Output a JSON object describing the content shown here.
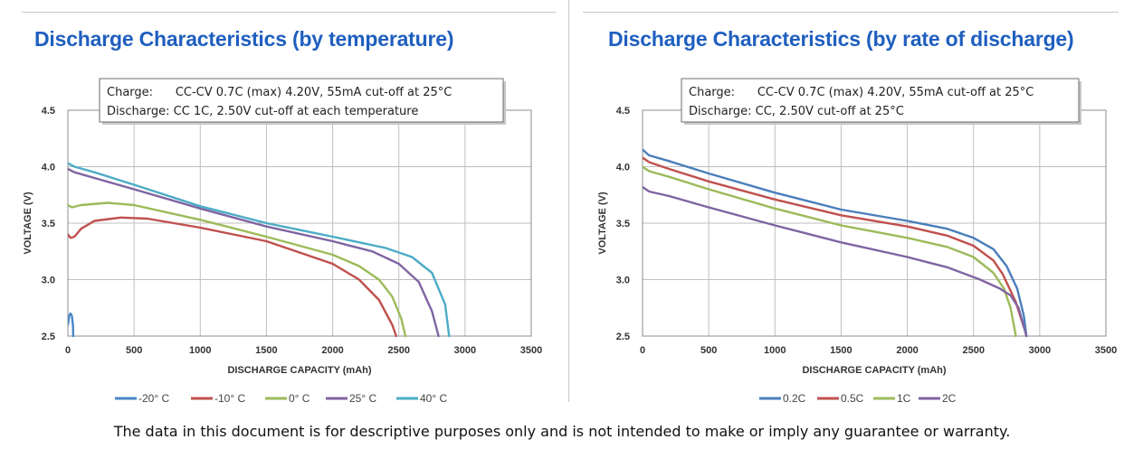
{
  "footer": "The data in this document is for descriptive purposes only and is not intended to make or imply any guarantee or warranty.",
  "chart_data": [
    {
      "type": "line",
      "title": "Discharge Characteristics (by temperature)",
      "xlabel": "DISCHARGE CAPACITY (mAh)",
      "ylabel": "VOLTAGE (V)",
      "xlim": [
        0,
        3500
      ],
      "ylim": [
        2.5,
        4.5
      ],
      "x_ticks": [
        "0",
        "500",
        "1000",
        "1500",
        "2000",
        "2500",
        "3000",
        "3500"
      ],
      "y_ticks": [
        "2.5",
        "3.0",
        "3.5",
        "4.0",
        "4.5"
      ],
      "grid": true,
      "legend_position": "bottom",
      "annotation": [
        "Charge:      CC-CV 0.7C (max) 4.20V, 55mA cut-off at 25°C",
        "Discharge: CC 1C, 2.50V cut-off at each temperature"
      ],
      "series": [
        {
          "name": "-20° C",
          "color": "#4a86c8",
          "x": [
            0,
            10,
            20,
            30,
            38,
            40
          ],
          "y": [
            2.6,
            2.68,
            2.7,
            2.68,
            2.6,
            2.5
          ]
        },
        {
          "name": "-10° C",
          "color": "#c0504d",
          "x": [
            0,
            20,
            50,
            100,
            200,
            400,
            600,
            1000,
            1500,
            2000,
            2200,
            2350,
            2450,
            2480
          ],
          "y": [
            3.4,
            3.37,
            3.38,
            3.45,
            3.52,
            3.55,
            3.54,
            3.46,
            3.34,
            3.14,
            3.0,
            2.82,
            2.6,
            2.5
          ]
        },
        {
          "name": "0° C",
          "color": "#9bbb59",
          "x": [
            0,
            30,
            100,
            300,
            500,
            1000,
            1500,
            2000,
            2200,
            2350,
            2450,
            2520,
            2550
          ],
          "y": [
            3.66,
            3.64,
            3.66,
            3.68,
            3.66,
            3.53,
            3.38,
            3.22,
            3.12,
            3.0,
            2.85,
            2.65,
            2.5
          ]
        },
        {
          "name": "25° C",
          "color": "#8064a2",
          "x": [
            0,
            50,
            200,
            500,
            1000,
            1500,
            2000,
            2300,
            2500,
            2650,
            2750,
            2800
          ],
          "y": [
            3.98,
            3.95,
            3.9,
            3.8,
            3.63,
            3.47,
            3.34,
            3.25,
            3.14,
            2.98,
            2.72,
            2.5
          ]
        },
        {
          "name": "40° C",
          "color": "#4bacc6",
          "x": [
            0,
            50,
            200,
            500,
            1000,
            1500,
            2000,
            2400,
            2600,
            2750,
            2850,
            2880
          ],
          "y": [
            4.03,
            4.0,
            3.95,
            3.84,
            3.65,
            3.5,
            3.38,
            3.28,
            3.2,
            3.06,
            2.78,
            2.5
          ]
        }
      ]
    },
    {
      "type": "line",
      "title": "Discharge Characteristics (by rate of discharge)",
      "xlabel": "DISCHARGE CAPACITY (mAh)",
      "ylabel": "VOLTAGE (V)",
      "xlim": [
        0,
        3500
      ],
      "ylim": [
        2.5,
        4.5
      ],
      "x_ticks": [
        "0",
        "500",
        "1000",
        "1500",
        "2000",
        "2500",
        "3000",
        "3500"
      ],
      "y_ticks": [
        "2.5",
        "3.0",
        "3.5",
        "4.0",
        "4.5"
      ],
      "grid": true,
      "legend_position": "bottom",
      "annotation": [
        "Charge:      CC-CV 0.7C (max) 4.20V, 55mA cut-off at 25°C",
        "Discharge: CC, 2.50V cut-off at 25°C"
      ],
      "series": [
        {
          "name": "0.2C",
          "color": "#4a7ebb",
          "x": [
            0,
            50,
            200,
            500,
            1000,
            1500,
            2000,
            2300,
            2500,
            2650,
            2750,
            2830,
            2880,
            2900
          ],
          "y": [
            4.15,
            4.1,
            4.05,
            3.94,
            3.77,
            3.62,
            3.52,
            3.45,
            3.37,
            3.27,
            3.12,
            2.92,
            2.68,
            2.5
          ]
        },
        {
          "name": "0.5C",
          "color": "#c0504d",
          "x": [
            0,
            50,
            200,
            500,
            1000,
            1500,
            2000,
            2300,
            2500,
            2650,
            2720,
            2780,
            2820,
            2880
          ],
          "y": [
            4.08,
            4.04,
            3.98,
            3.87,
            3.71,
            3.57,
            3.47,
            3.39,
            3.3,
            3.17,
            3.05,
            2.9,
            2.8,
            2.58
          ]
        },
        {
          "name": "1C",
          "color": "#9bbb59",
          "x": [
            0,
            50,
            200,
            500,
            1000,
            1500,
            2000,
            2300,
            2500,
            2650,
            2730,
            2780,
            2820
          ],
          "y": [
            4.0,
            3.96,
            3.91,
            3.8,
            3.63,
            3.48,
            3.37,
            3.29,
            3.2,
            3.06,
            2.92,
            2.75,
            2.5
          ]
        },
        {
          "name": "2C",
          "color": "#8064a2",
          "x": [
            0,
            50,
            200,
            500,
            1000,
            1500,
            2000,
            2300,
            2550,
            2700,
            2780,
            2840,
            2900
          ],
          "y": [
            3.82,
            3.78,
            3.74,
            3.64,
            3.48,
            3.33,
            3.2,
            3.11,
            3.0,
            2.92,
            2.86,
            2.75,
            2.5
          ]
        }
      ]
    }
  ]
}
